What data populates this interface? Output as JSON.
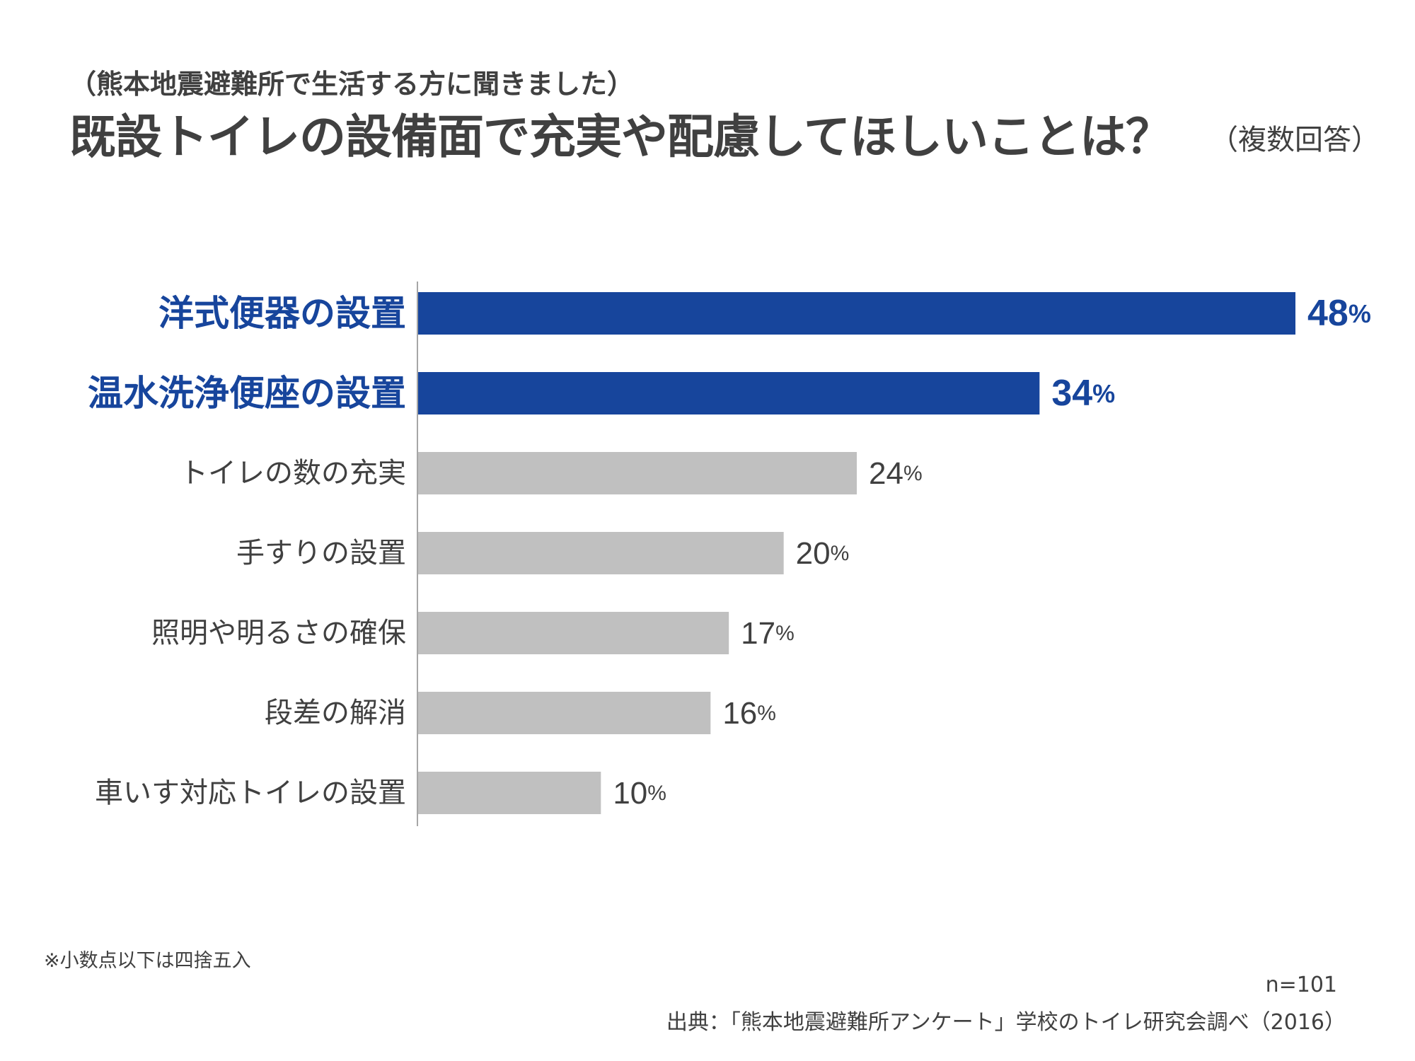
{
  "header": {
    "subtitle": "（熊本地震避難所で生活する方に聞きました）",
    "title": "既設トイレの設備面で充実や配慮してほしいことは？",
    "title_note": "（複数回答）"
  },
  "colors": {
    "highlight": "#17459c",
    "default_bar": "#c0c0c0",
    "default_text": "#404040",
    "axis": "#a6a6a6"
  },
  "chart_data": {
    "type": "bar",
    "orientation": "horizontal",
    "categories": [
      "洋式便器の設置",
      "温水洗浄便座の設置",
      "トイレの数の充実",
      "手すりの設置",
      "照明や明るさの確保",
      "段差の解消",
      "車いす対応トイレの設置"
    ],
    "values": [
      48,
      34,
      24,
      20,
      17,
      16,
      10
    ],
    "value_suffix": "%",
    "highlighted": [
      true,
      true,
      false,
      false,
      false,
      false,
      false
    ],
    "xlim": [
      0,
      48
    ]
  },
  "footer": {
    "footnote": "※小数点以下は四捨五入",
    "sample_size": "n=101",
    "source": "出典：「熊本地震避難所アンケート」学校のトイレ研究会調べ（2016）"
  }
}
